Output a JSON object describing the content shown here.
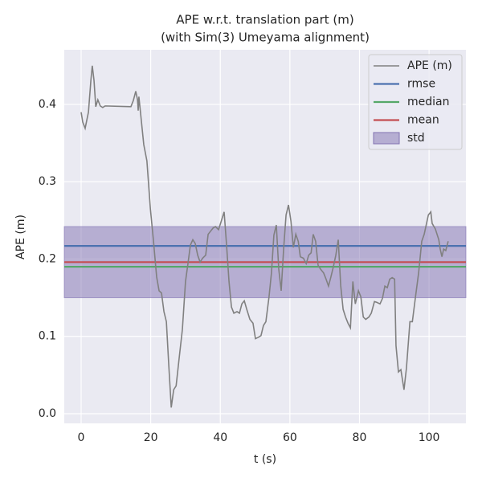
{
  "chart_data": {
    "type": "line",
    "title": "APE w.r.t. translation part (m)",
    "subtitle": "(with Sim(3) Umeyama alignment)",
    "xlabel": "t (s)",
    "ylabel": "APE (m)",
    "xlim": [
      -4.85,
      110.6
    ],
    "ylim": [
      -0.0125,
      0.4706
    ],
    "xticks": [
      0,
      20,
      40,
      60,
      80,
      100
    ],
    "yticks": [
      {
        "value": 0,
        "label": "0.0"
      },
      0.1,
      0.2,
      0.3,
      0.4
    ],
    "grid": true,
    "legend": "upper right",
    "x": [
      0,
      0.46,
      1.15,
      1.6,
      2.1,
      2.8,
      3.2,
      3.7,
      4.2,
      4.8,
      5.5,
      6.2,
      6.9,
      14.3,
      15.0,
      15.7,
      16.2,
      16.4,
      16.6,
      17.3,
      18.0,
      18.9,
      19.9,
      20.8,
      21.7,
      22.4,
      23.1,
      23.8,
      24.5,
      25.2,
      25.9,
      26.6,
      27.3,
      28.2,
      29.1,
      30.0,
      30.7,
      31.4,
      32.1,
      32.8,
      33.5,
      34.2,
      34.9,
      35.8,
      36.5,
      37.2,
      37.9,
      38.6,
      39.5,
      40.2,
      41.1,
      41.8,
      42.5,
      43.2,
      43.9,
      44.8,
      45.5,
      46.2,
      46.9,
      47.6,
      48.5,
      49.4,
      50.1,
      51.0,
      51.7,
      52.4,
      53.1,
      54.0,
      54.7,
      55.4,
      56.1,
      56.8,
      57.5,
      58.2,
      58.9,
      59.6,
      60.3,
      61.0,
      61.7,
      62.4,
      63.0,
      63.9,
      64.7,
      65.4,
      66.1,
      66.7,
      67.4,
      68.1,
      68.8,
      69.7,
      70.4,
      71.1,
      71.8,
      72.5,
      73.2,
      73.9,
      74.6,
      75.3,
      76.0,
      76.7,
      77.4,
      78.1,
      78.8,
      79.7,
      80.4,
      81.1,
      81.8,
      82.7,
      83.4,
      84.3,
      85.0,
      85.9,
      86.6,
      87.3,
      88.0,
      88.7,
      89.4,
      90.1,
      90.5,
      91.2,
      91.9,
      92.8,
      93.5,
      94.5,
      95.2,
      96.1,
      97.0,
      97.9,
      98.6,
      99.8,
      100.5,
      100.9,
      101.8,
      102.8,
      103.2,
      103.7,
      104.2,
      104.8,
      105.5
    ],
    "series": [
      {
        "name": "APE (m)",
        "color": "#808080",
        "values": [
          0.39,
          0.377,
          0.369,
          0.379,
          0.39,
          0.431,
          0.45,
          0.431,
          0.397,
          0.406,
          0.398,
          0.396,
          0.398,
          0.397,
          0.405,
          0.417,
          0.406,
          0.392,
          0.41,
          0.379,
          0.348,
          0.327,
          0.265,
          0.223,
          0.177,
          0.159,
          0.156,
          0.132,
          0.119,
          0.062,
          0.008,
          0.031,
          0.036,
          0.073,
          0.109,
          0.171,
          0.194,
          0.218,
          0.225,
          0.22,
          0.205,
          0.196,
          0.201,
          0.205,
          0.232,
          0.236,
          0.24,
          0.242,
          0.238,
          0.248,
          0.261,
          0.218,
          0.171,
          0.138,
          0.13,
          0.132,
          0.13,
          0.142,
          0.146,
          0.135,
          0.122,
          0.117,
          0.097,
          0.099,
          0.101,
          0.114,
          0.119,
          0.151,
          0.182,
          0.231,
          0.244,
          0.187,
          0.159,
          0.213,
          0.257,
          0.27,
          0.249,
          0.215,
          0.232,
          0.223,
          0.203,
          0.201,
          0.194,
          0.205,
          0.208,
          0.232,
          0.223,
          0.192,
          0.187,
          0.182,
          0.174,
          0.165,
          0.177,
          0.19,
          0.205,
          0.225,
          0.166,
          0.135,
          0.125,
          0.117,
          0.111,
          0.171,
          0.142,
          0.159,
          0.151,
          0.125,
          0.122,
          0.125,
          0.13,
          0.145,
          0.144,
          0.142,
          0.149,
          0.165,
          0.163,
          0.174,
          0.176,
          0.174,
          0.088,
          0.054,
          0.057,
          0.031,
          0.059,
          0.119,
          0.119,
          0.151,
          0.182,
          0.223,
          0.232,
          0.257,
          0.261,
          0.246,
          0.239,
          0.225,
          0.213,
          0.203,
          0.213,
          0.211,
          0.223
        ]
      }
    ],
    "hlines": [
      {
        "name": "rmse",
        "color": "#4c72b0",
        "value": 0.217
      },
      {
        "name": "median",
        "color": "#55a868",
        "value": 0.19
      },
      {
        "name": "mean",
        "color": "#c44e52",
        "value": 0.196
      }
    ],
    "band": {
      "name": "std",
      "color": "#8172b2",
      "value": 0.046
    }
  }
}
